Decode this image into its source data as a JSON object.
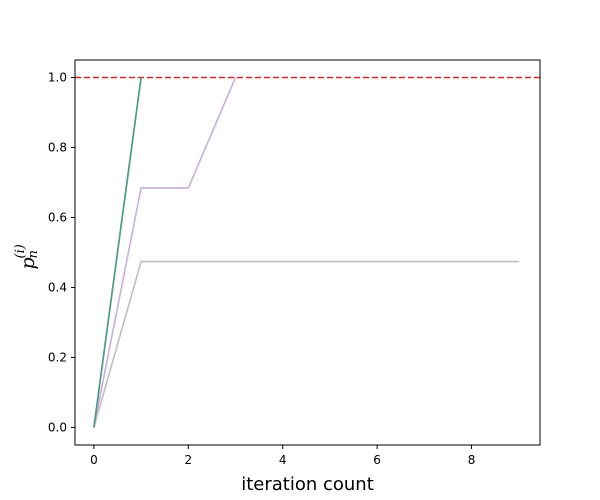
{
  "chart_data": {
    "type": "line",
    "xlabel": "iteration count",
    "ylabel": {
      "base": "p",
      "subscript": "n",
      "superscript": "(i)"
    },
    "xlim": [
      -0.4,
      9.45
    ],
    "ylim": [
      -0.05,
      1.05
    ],
    "xticks": [
      0,
      2,
      4,
      6,
      8
    ],
    "yticks": [
      0.0,
      0.2,
      0.4,
      0.6,
      0.8,
      1.0
    ],
    "grid": false,
    "reference_line": {
      "y": 1.0,
      "style": "dashed",
      "color": "#d62728"
    },
    "series": [
      {
        "color": "#c0c0c0",
        "x": [
          0,
          1,
          2,
          3,
          4,
          5,
          6,
          7,
          8,
          9
        ],
        "y": [
          0.0,
          0.474,
          0.474,
          0.474,
          0.474,
          0.474,
          0.474,
          0.474,
          0.474,
          0.474
        ]
      },
      {
        "color": "#c9afd9",
        "x": [
          0,
          1,
          2,
          3
        ],
        "y": [
          0.0,
          0.684,
          0.684,
          1.0
        ]
      },
      {
        "color": "#8fbc8f",
        "x": [
          0,
          1
        ],
        "y": [
          0.0,
          1.0
        ]
      },
      {
        "color": "#4f9a8a",
        "x": [
          0,
          1
        ],
        "y": [
          0.0,
          1.0
        ]
      }
    ]
  }
}
